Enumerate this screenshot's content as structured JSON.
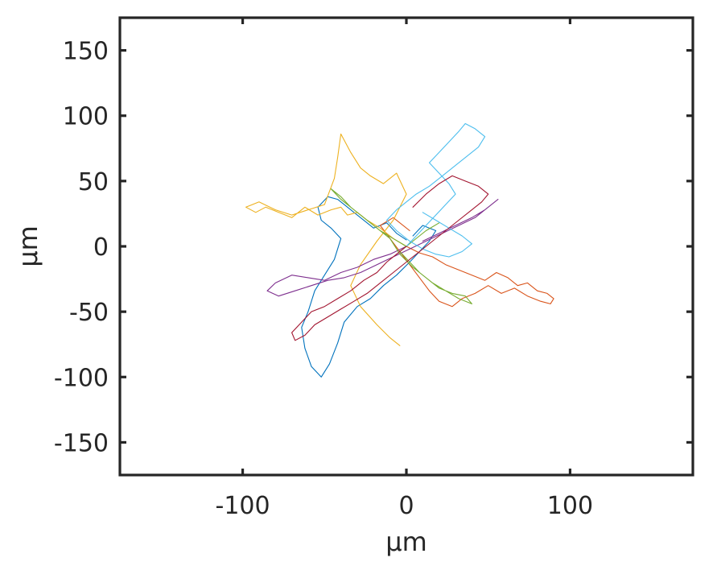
{
  "chart_data": {
    "type": "line",
    "title": "",
    "xlabel": "μm",
    "ylabel": "μm",
    "xlim": [
      -175,
      175
    ],
    "ylim": [
      -175,
      175
    ],
    "xticks": [
      -100,
      0,
      100
    ],
    "yticks": [
      -150,
      -100,
      -50,
      0,
      50,
      100,
      150
    ],
    "xtick_labels": [
      "-100",
      "0",
      "100"
    ],
    "ytick_labels": [
      "-150",
      "-100",
      "-50",
      "0",
      "50",
      "100",
      "150"
    ],
    "grid": false,
    "legend": "none",
    "series": [
      {
        "color": "#0072BD",
        "x": [
          0,
          -6,
          -12,
          -20,
          -28,
          -36,
          -42,
          -48,
          -54,
          -52,
          -46,
          -40,
          -44,
          -50,
          -56,
          -60,
          -64,
          -62,
          -58,
          -52,
          -47,
          -42,
          -38,
          -30,
          -22,
          -14,
          -6,
          2,
          8,
          14,
          18,
          10,
          4
        ],
        "y": [
          5,
          10,
          18,
          14,
          22,
          30,
          36,
          38,
          30,
          20,
          14,
          6,
          -10,
          -22,
          -34,
          -50,
          -62,
          -78,
          -92,
          -100,
          -90,
          -74,
          -58,
          -46,
          -40,
          -30,
          -22,
          -12,
          -4,
          4,
          12,
          16,
          8
        ]
      },
      {
        "color": "#D95319",
        "x": [
          0,
          8,
          16,
          24,
          32,
          40,
          48,
          55,
          62,
          68,
          74,
          80,
          86,
          90,
          88,
          82,
          74,
          66,
          58,
          50,
          42,
          34,
          28,
          20,
          14,
          8,
          2,
          -4,
          -10,
          -16,
          -8,
          2
        ],
        "y": [
          0,
          -5,
          -8,
          -14,
          -18,
          -22,
          -26,
          -20,
          -24,
          -30,
          -28,
          -34,
          -36,
          -40,
          -44,
          -42,
          -38,
          -32,
          -36,
          -30,
          -36,
          -40,
          -46,
          -42,
          -34,
          -24,
          -14,
          -4,
          6,
          16,
          22,
          12
        ]
      },
      {
        "color": "#EDB120",
        "x": [
          0,
          -8,
          -16,
          -24,
          -30,
          -36,
          -40,
          -46,
          -54,
          -62,
          -70,
          -78,
          -86,
          -92,
          -98,
          -90,
          -80,
          -70,
          -60,
          -50,
          -44,
          -42,
          -40,
          -34,
          -28,
          -22,
          -14,
          -6,
          0,
          -8,
          -18,
          -28,
          -34,
          -28,
          -18,
          -10,
          -4
        ],
        "y": [
          0,
          6,
          14,
          20,
          26,
          24,
          30,
          28,
          24,
          30,
          22,
          26,
          30,
          26,
          30,
          34,
          28,
          24,
          28,
          32,
          52,
          68,
          86,
          72,
          60,
          54,
          48,
          56,
          40,
          20,
          4,
          -14,
          -30,
          -46,
          -60,
          -70,
          -76
        ]
      },
      {
        "color": "#7E2F8E",
        "x": [
          0,
          -10,
          -20,
          -30,
          -40,
          -50,
          -60,
          -70,
          -80,
          -85,
          -78,
          -68,
          -58,
          -48,
          -38,
          -28,
          -18,
          -8,
          2,
          12,
          22,
          32,
          42,
          50,
          56,
          48,
          40,
          30,
          20,
          10
        ],
        "y": [
          0,
          -6,
          -10,
          -16,
          -20,
          -26,
          -24,
          -22,
          -28,
          -34,
          -38,
          -34,
          -30,
          -26,
          -24,
          -20,
          -14,
          -8,
          -2,
          4,
          10,
          16,
          22,
          30,
          36,
          28,
          22,
          16,
          10,
          4
        ]
      },
      {
        "color": "#77AC30",
        "x": [
          0,
          -8,
          -16,
          -24,
          -32,
          -40,
          -46,
          -40,
          -34,
          -26,
          -18,
          -10,
          -4,
          4,
          12,
          20,
          28,
          36,
          40,
          32,
          24,
          16,
          8,
          2,
          -4,
          4,
          12,
          20
        ],
        "y": [
          0,
          6,
          12,
          20,
          28,
          36,
          44,
          38,
          30,
          22,
          14,
          6,
          -6,
          -16,
          -24,
          -32,
          -36,
          -38,
          -44,
          -40,
          -34,
          -28,
          -20,
          -12,
          -4,
          4,
          12,
          18
        ]
      },
      {
        "color": "#4DBEEE",
        "x": [
          0,
          6,
          12,
          18,
          24,
          30,
          26,
          20,
          14,
          20,
          26,
          32,
          36,
          42,
          48,
          44,
          38,
          30,
          22,
          14,
          6,
          0,
          -6,
          -12,
          -6,
          2,
          10,
          18,
          26,
          34,
          40,
          34,
          26,
          18,
          10
        ],
        "y": [
          0,
          8,
          16,
          24,
          32,
          40,
          48,
          56,
          64,
          72,
          80,
          88,
          94,
          90,
          84,
          76,
          70,
          62,
          54,
          46,
          40,
          34,
          28,
          20,
          12,
          4,
          -2,
          -6,
          -8,
          -4,
          2,
          8,
          14,
          20,
          26
        ]
      },
      {
        "color": "#A2142F",
        "x": [
          0,
          -6,
          -12,
          -18,
          -26,
          -34,
          -42,
          -50,
          -58,
          -64,
          -70,
          -68,
          -62,
          -56,
          -48,
          -40,
          -32,
          -24,
          -16,
          -8,
          0,
          8,
          16,
          24,
          32,
          40,
          46,
          50,
          44,
          36,
          28,
          20,
          12,
          4
        ],
        "y": [
          0,
          -6,
          -12,
          -20,
          -26,
          -34,
          -40,
          -46,
          -50,
          -58,
          -66,
          -72,
          -68,
          -60,
          -54,
          -48,
          -42,
          -36,
          -28,
          -20,
          -12,
          -4,
          4,
          12,
          20,
          28,
          34,
          40,
          46,
          50,
          54,
          48,
          40,
          30
        ]
      }
    ]
  }
}
